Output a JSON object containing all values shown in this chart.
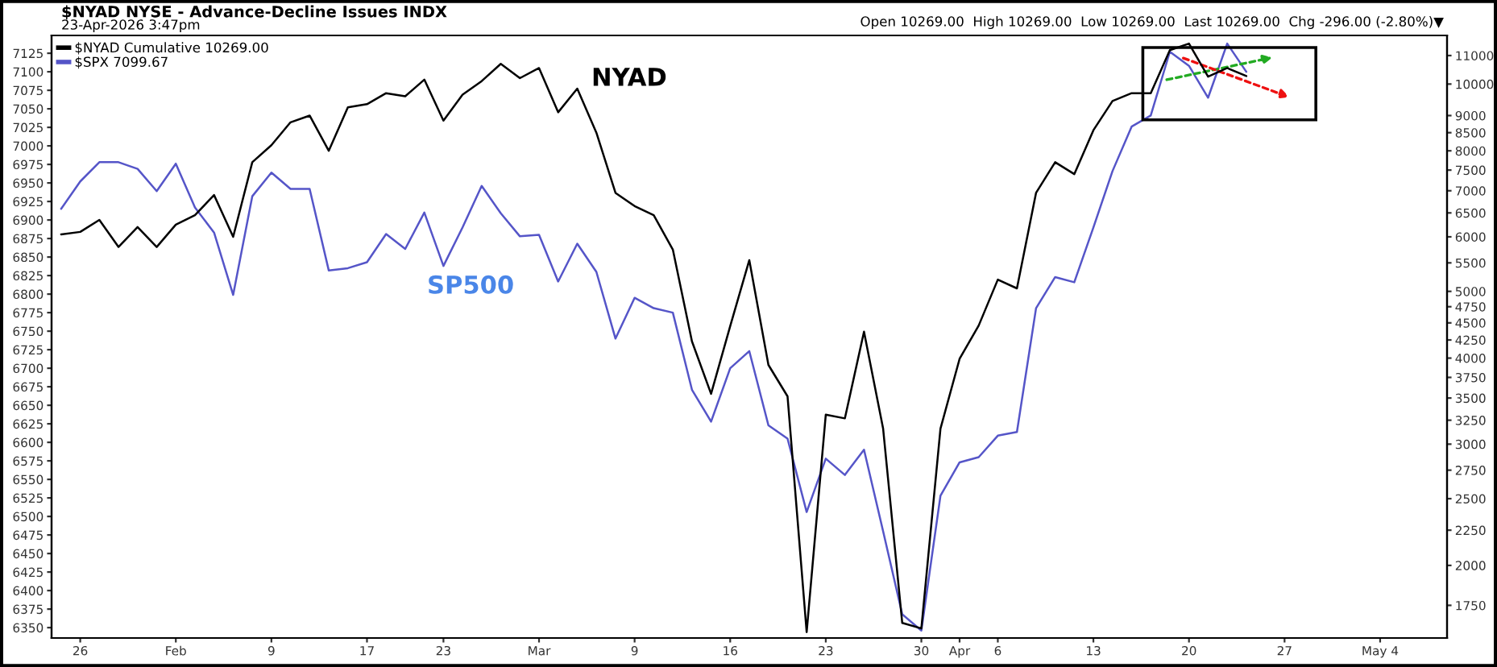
{
  "chart_data": {
    "type": "line",
    "title": "$NYAD NYSE - Advance-Decline Issues INDX",
    "subtitle": "23-Apr-2026 3:47pm",
    "annotations": [
      "Open 10269.00  High 10269.00  Low 10269.00  Last 10269.00  Chg -296.00 (-2.80%)▼",
      "NYAD",
      "SP500"
    ],
    "categories": [
      null,
      "26",
      null,
      null,
      null,
      null,
      "Feb",
      null,
      null,
      null,
      null,
      "9",
      null,
      null,
      null,
      null,
      "17",
      null,
      null,
      null,
      "23",
      null,
      null,
      null,
      null,
      "Mar",
      null,
      null,
      null,
      null,
      "9",
      null,
      null,
      null,
      null,
      "16",
      null,
      null,
      null,
      null,
      "23",
      null,
      null,
      null,
      null,
      "30",
      null,
      "Apr",
      null,
      "6",
      null,
      null,
      null,
      null,
      "13",
      null,
      null,
      null,
      null,
      "20",
      null,
      null,
      null,
      null,
      "27",
      null,
      null,
      null,
      null,
      "May 4",
      null,
      null,
      null
    ],
    "series": [
      {
        "name": "$NYAD Cumulative 10269.00",
        "axis": "y2",
        "color": "#000000",
        "values": [
          6050,
          6100,
          6350,
          5800,
          6200,
          5800,
          6250,
          6450,
          6900,
          6000,
          7700,
          8150,
          8800,
          9000,
          8000,
          9250,
          9350,
          9700,
          9600,
          10150,
          8850,
          9650,
          10100,
          10700,
          10200,
          10550,
          9100,
          9850,
          8500,
          6950,
          6650,
          6450,
          5750,
          4230,
          3550,
          4450,
          5550,
          3910,
          3520,
          1600,
          3310,
          3270,
          4370,
          3160,
          1650,
          1620,
          3160,
          3990,
          4460,
          5200,
          5050,
          6950,
          7700,
          7400,
          8570,
          9450,
          9700,
          9700,
          11200,
          11450,
          10250,
          10550,
          10270,
          null,
          null,
          null,
          null,
          null,
          null,
          null,
          null,
          null,
          null
        ]
      },
      {
        "name": "$SPX 7099.67",
        "color": "#5555c8",
        "values": [
          6915,
          6952,
          6978,
          6978,
          6969,
          6939,
          6976,
          6917,
          6883,
          6799,
          6932,
          6964,
          6942,
          6942,
          6832,
          6835,
          6843,
          6881,
          6861,
          6910,
          6838,
          6890,
          6946,
          6909,
          6878,
          6880,
          6817,
          6868,
          6830,
          6740,
          6795,
          6781,
          6775,
          6671,
          6628,
          6700,
          6723,
          6623,
          6605,
          6506,
          6578,
          6556,
          6590,
          6480,
          6368,
          6346,
          6528,
          6573,
          6580,
          6609,
          6614,
          6781,
          6823,
          6816,
          6890,
          6966,
          7026,
          7041,
          7127,
          7108,
          7065,
          7138,
          7100,
          null,
          null,
          null,
          null,
          null,
          null,
          null,
          null,
          null,
          null
        ]
      }
    ],
    "log": "y2",
    "ylim": [
      6336,
      7149
    ],
    "yticks": [
      6350,
      6375,
      6400,
      6425,
      6450,
      6475,
      6500,
      6525,
      6550,
      6575,
      6600,
      6625,
      6650,
      6675,
      6700,
      6725,
      6750,
      6775,
      6800,
      6825,
      6850,
      6875,
      6900,
      6925,
      6950,
      6975,
      7000,
      7025,
      7050,
      7075,
      7100,
      7125
    ],
    "y2lim": [
      1569,
      11765
    ],
    "y2ticks": [
      1750,
      2000,
      2250,
      2500,
      2750,
      3000,
      3250,
      3500,
      3750,
      4000,
      4250,
      4500,
      4750,
      5000,
      5500,
      6000,
      6500,
      7000,
      7500,
      8000,
      8500,
      9000,
      10000,
      11000
    ],
    "grid": false,
    "legend": "top left"
  }
}
